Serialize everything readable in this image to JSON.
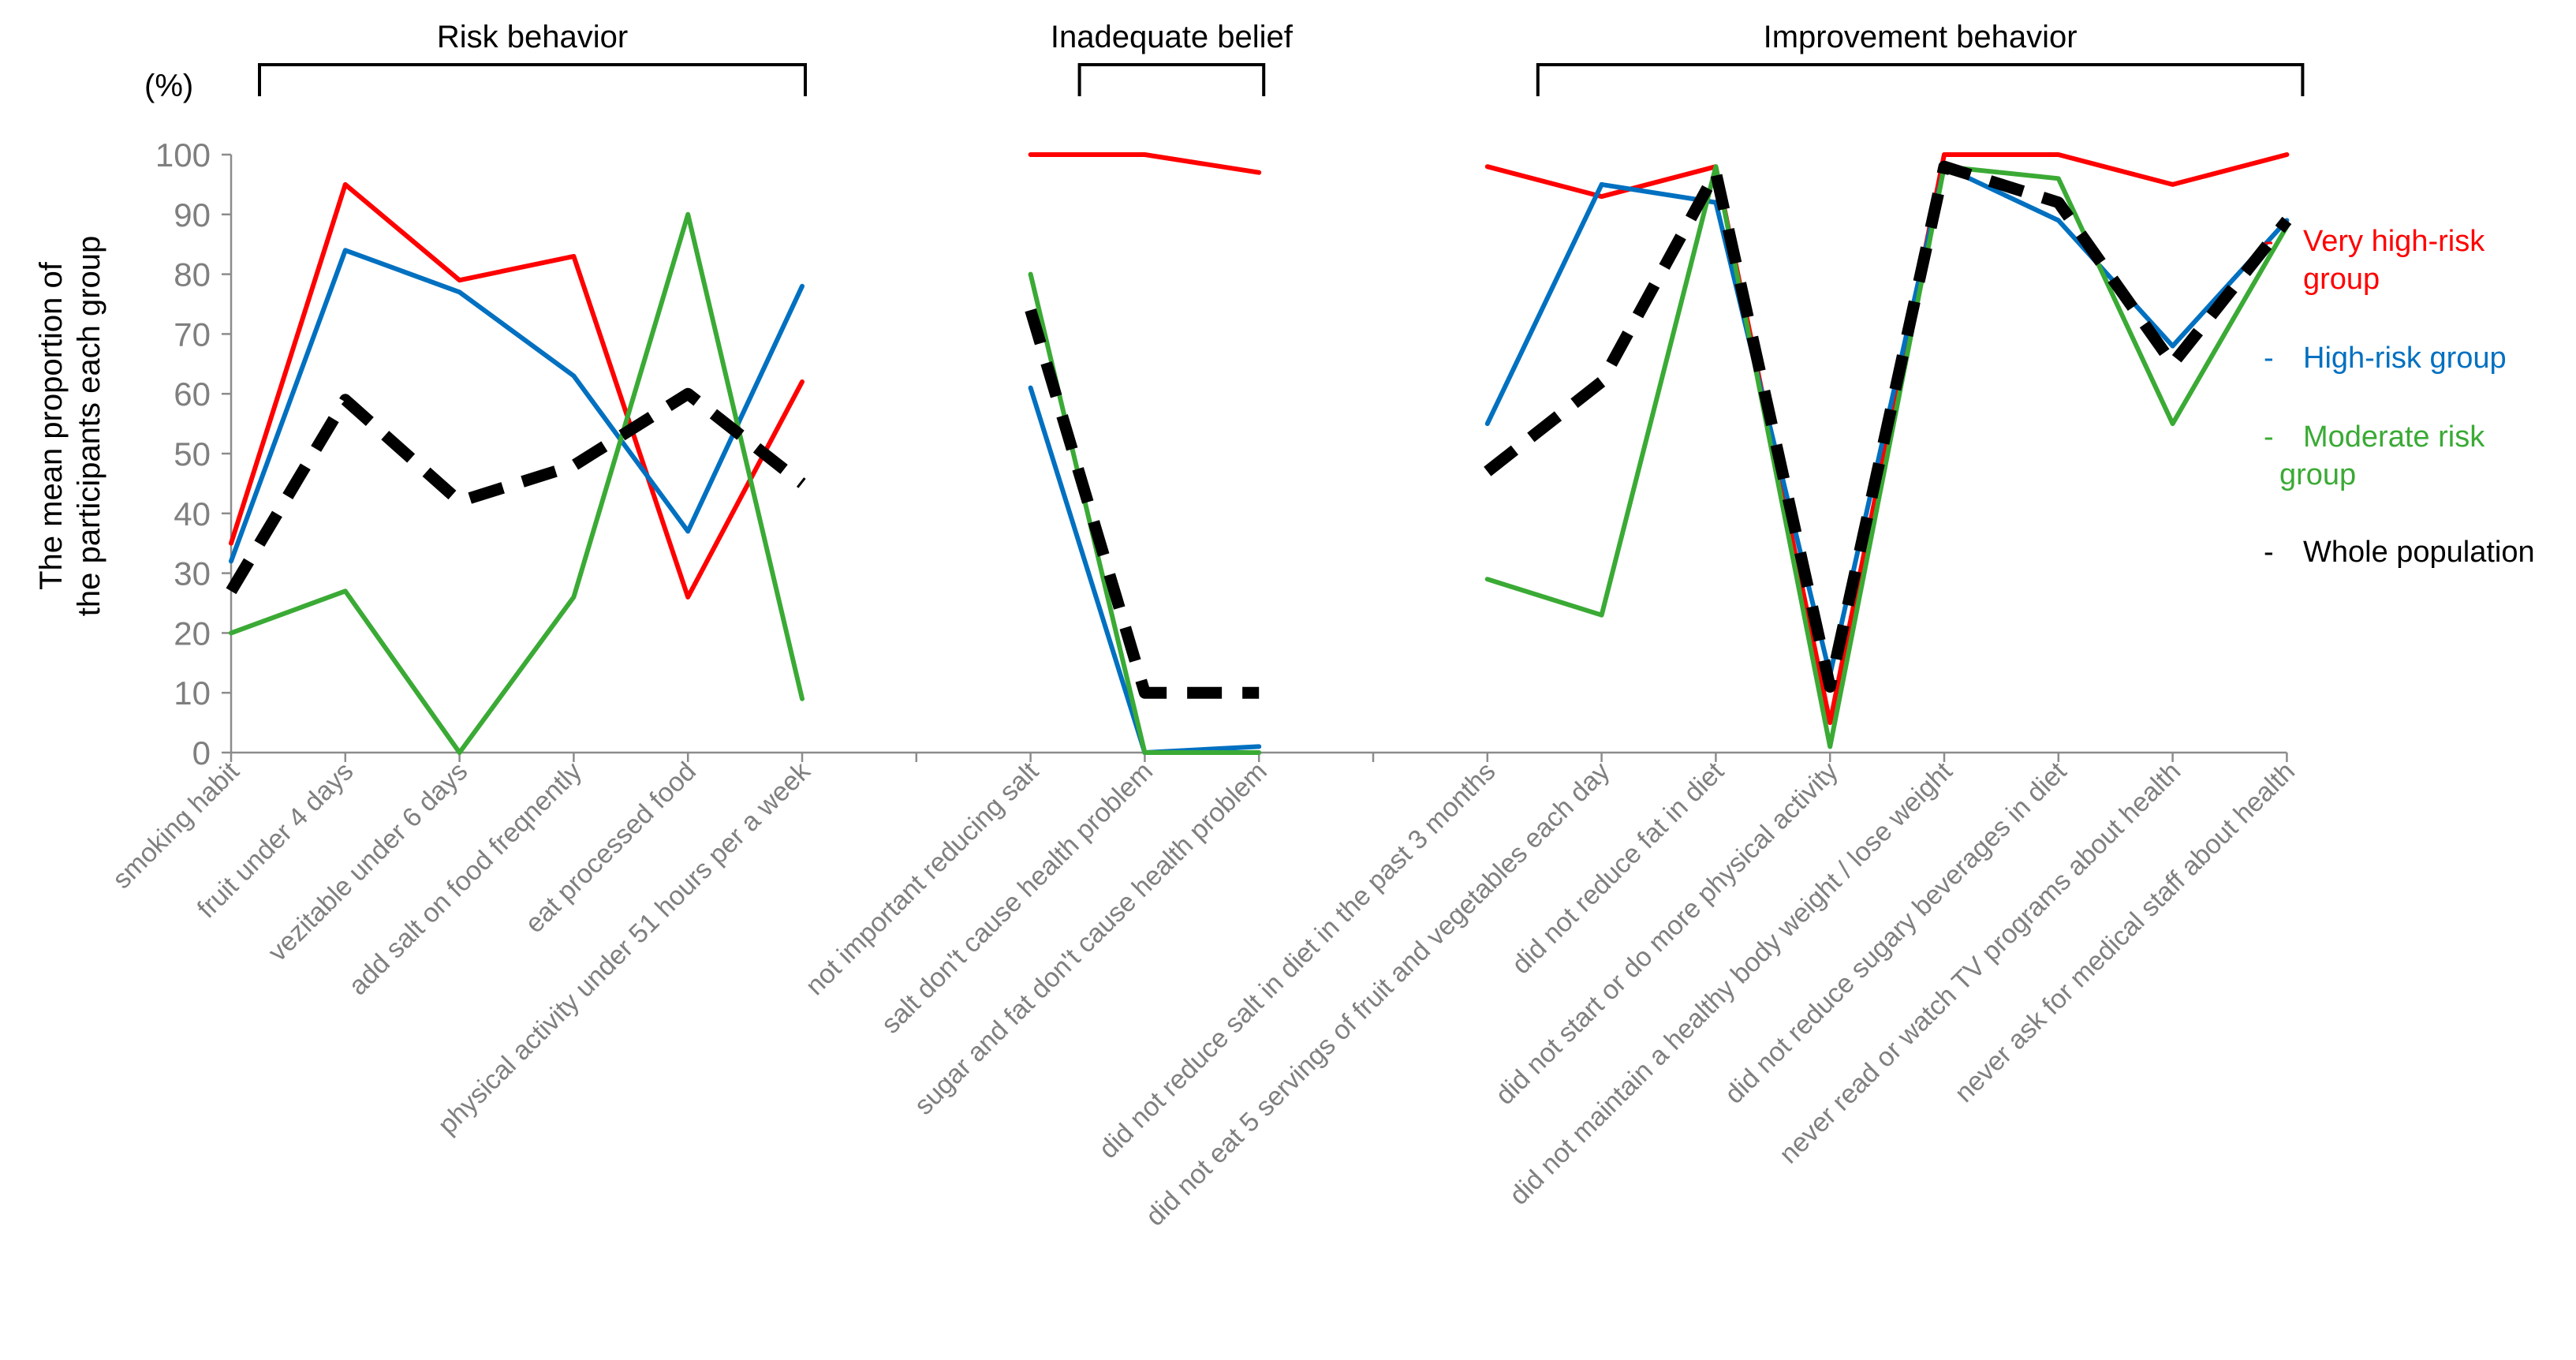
{
  "chart_data": {
    "type": "line",
    "unit_label": "(%)",
    "ylabel_lines": [
      "The mean proportion of",
      "the participants each group"
    ],
    "ylim": [
      0,
      100
    ],
    "yticks": [
      0,
      10,
      20,
      30,
      40,
      50,
      60,
      70,
      80,
      90,
      100
    ],
    "categories": [
      "smoking habit",
      "fruit under 4 days",
      "vezitable under 6 days",
      "add salt on food freqnently",
      "eat processed food",
      "physical activity under 51 hours per a week",
      "",
      "not important reducing salt",
      "salt don't cause health problem",
      "sugar and fat don't cause health problem",
      "",
      "did not reduce salt in diet in the past 3 months",
      "did not eat 5 servings of fruit and vegetables each day",
      "did not reduce fat in diet",
      "did not start or do more physical activity",
      "did not maintain a healthy body weight / lose weight",
      "did not reduce sugary beverages in diet",
      "never read or watch TV programs about health",
      "never ask for medical staff about health"
    ],
    "groups": [
      {
        "label": "Risk behavior",
        "from": 0,
        "to": 5
      },
      {
        "label": "Inadequate belief",
        "from": 7,
        "to": 9
      },
      {
        "label": "Improvement behavior",
        "from": 11,
        "to": 18
      }
    ],
    "series": [
      {
        "name": "Very high-risk group",
        "legend_lines": [
          "Very high-risk",
          "group"
        ],
        "color": "#ff0000",
        "dashed": false,
        "values": [
          35,
          95,
          79,
          83,
          26,
          62,
          null,
          100,
          100,
          97,
          null,
          98,
          93,
          98,
          5,
          100,
          100,
          95,
          100
        ]
      },
      {
        "name": "High-risk group",
        "legend_lines": [
          "High-risk group"
        ],
        "color": "#0070c0",
        "dashed": false,
        "values": [
          32,
          84,
          77,
          63,
          37,
          78,
          null,
          61,
          0,
          1,
          null,
          55,
          95,
          92,
          13,
          98,
          89,
          68,
          89
        ]
      },
      {
        "name": "Moderate risk group",
        "legend_lines": [
          "Moderate risk",
          "group"
        ],
        "color": "#3aaa35",
        "dashed": false,
        "values": [
          20,
          27,
          0,
          26,
          90,
          9,
          null,
          80,
          0,
          0,
          null,
          29,
          23,
          98,
          1,
          98,
          96,
          55,
          88
        ]
      },
      {
        "name": "Whole population",
        "legend_lines": [
          "Whole population"
        ],
        "color": "#000000",
        "dashed": true,
        "values": [
          27,
          59,
          42,
          48,
          60,
          45,
          null,
          74,
          10,
          10,
          null,
          47,
          62,
          97,
          11,
          98,
          92,
          65,
          89
        ]
      }
    ]
  }
}
